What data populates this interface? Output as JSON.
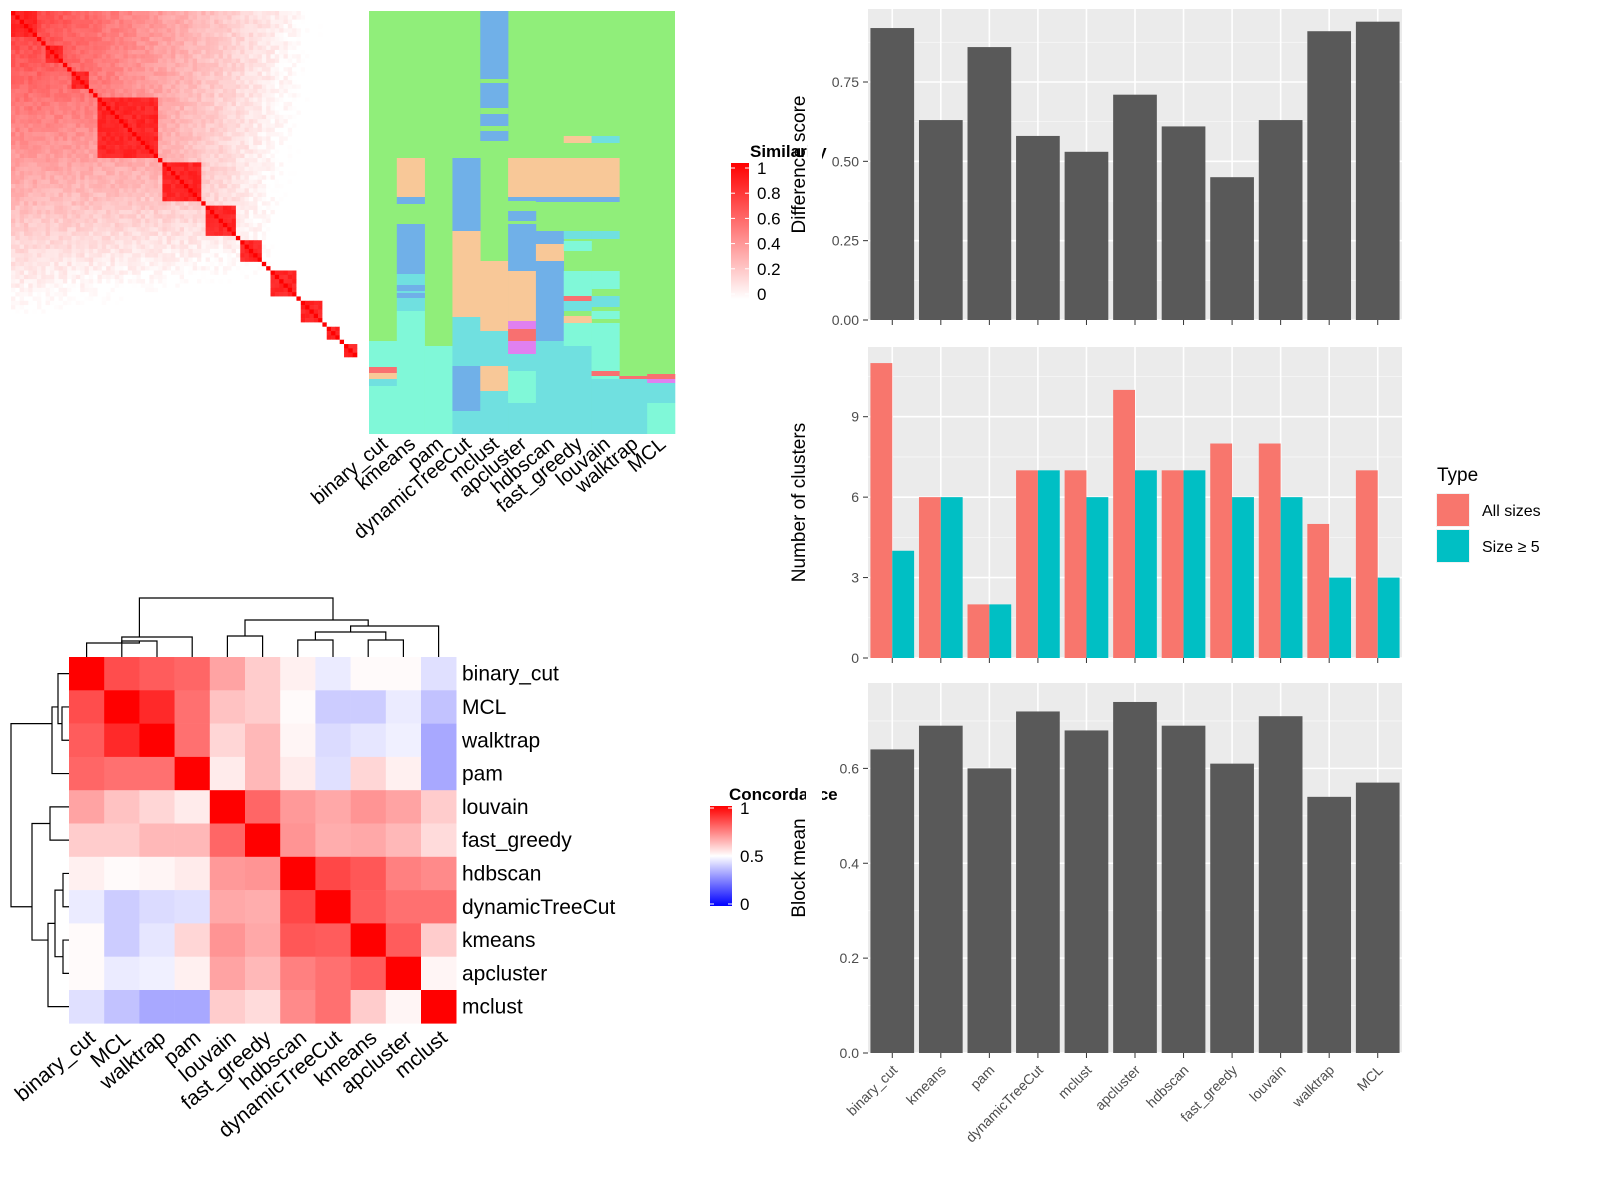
{
  "chart_data": [
    {
      "type": "heatmap",
      "id": "similarity-heatmap",
      "legend_title": "Similarity",
      "legend_ticks": [
        "1",
        "0.8",
        "0.6",
        "0.4",
        "0.2",
        "0"
      ],
      "colors": {
        "low": "#ffffff",
        "high": "#ff0000"
      }
    },
    {
      "type": "heatmap",
      "id": "cluster-membership",
      "methods": [
        "binary_cut",
        "kmeans",
        "pam",
        "dynamicTreeCut",
        "mclust",
        "apcluster",
        "hdbscan",
        "fast_greedy",
        "louvain",
        "walktrap",
        "MCL"
      ],
      "colors": {
        "green": "#90ee7a",
        "blue": "#70b0e8",
        "peach": "#f8c898",
        "cyan": "#70e0e0",
        "aqua": "#80f8d8",
        "violet": "#e080f0",
        "red": "#f87070"
      }
    },
    {
      "type": "heatmap",
      "id": "concordance-heatmap",
      "legend_title": "Concordance",
      "legend_ticks": [
        "1",
        "0.5",
        "0"
      ],
      "rows": [
        "binary_cut",
        "MCL",
        "walktrap",
        "pam",
        "louvain",
        "fast_greedy",
        "hdbscan",
        "dynamicTreeCut",
        "kmeans",
        "apcluster",
        "mclust"
      ],
      "cols": [
        "binary_cut",
        "MCL",
        "walktrap",
        "pam",
        "louvain",
        "fast_greedy",
        "hdbscan",
        "dynamicTreeCut",
        "kmeans",
        "apcluster",
        "mclust"
      ],
      "values": [
        [
          1.0,
          0.85,
          0.82,
          0.8,
          0.68,
          0.6,
          0.53,
          0.46,
          0.51,
          0.51,
          0.44
        ],
        [
          0.85,
          1.0,
          0.92,
          0.78,
          0.62,
          0.6,
          0.51,
          0.4,
          0.4,
          0.46,
          0.38
        ],
        [
          0.82,
          0.92,
          1.0,
          0.78,
          0.58,
          0.64,
          0.52,
          0.43,
          0.45,
          0.47,
          0.33
        ],
        [
          0.8,
          0.78,
          0.78,
          1.0,
          0.54,
          0.64,
          0.54,
          0.44,
          0.58,
          0.53,
          0.33
        ],
        [
          0.68,
          0.62,
          0.58,
          0.54,
          1.0,
          0.8,
          0.7,
          0.67,
          0.71,
          0.68,
          0.6
        ],
        [
          0.6,
          0.6,
          0.64,
          0.64,
          0.8,
          1.0,
          0.71,
          0.66,
          0.67,
          0.64,
          0.57
        ],
        [
          0.53,
          0.51,
          0.52,
          0.54,
          0.7,
          0.71,
          1.0,
          0.86,
          0.83,
          0.75,
          0.73
        ],
        [
          0.46,
          0.4,
          0.43,
          0.44,
          0.67,
          0.66,
          0.86,
          1.0,
          0.82,
          0.78,
          0.78
        ],
        [
          0.51,
          0.4,
          0.45,
          0.58,
          0.71,
          0.67,
          0.83,
          0.82,
          1.0,
          0.82,
          0.6
        ],
        [
          0.51,
          0.46,
          0.47,
          0.53,
          0.68,
          0.64,
          0.75,
          0.78,
          0.82,
          1.0,
          0.52
        ],
        [
          0.44,
          0.38,
          0.33,
          0.33,
          0.6,
          0.57,
          0.73,
          0.78,
          0.6,
          0.52,
          1.0
        ]
      ]
    },
    {
      "type": "bar",
      "id": "difference-score",
      "categories": [
        "binary_cut",
        "kmeans",
        "pam",
        "dynamicTreeCut",
        "mclust",
        "apcluster",
        "hdbscan",
        "fast_greedy",
        "louvain",
        "walktrap",
        "MCL"
      ],
      "values": [
        0.92,
        0.63,
        0.86,
        0.58,
        0.53,
        0.71,
        0.61,
        0.45,
        0.63,
        0.91,
        0.94
      ],
      "ylabel": "Difference score",
      "ylim": [
        0,
        0.98
      ],
      "yticks": [
        0,
        0.25,
        0.5,
        0.75
      ],
      "ytick_labels": [
        "0.00",
        "0.25",
        "0.50",
        "0.75"
      ],
      "grid": true,
      "color": "#595959"
    },
    {
      "type": "bar",
      "id": "number-of-clusters",
      "categories": [
        "binary_cut",
        "kmeans",
        "pam",
        "dynamicTreeCut",
        "mclust",
        "apcluster",
        "hdbscan",
        "fast_greedy",
        "louvain",
        "walktrap",
        "MCL"
      ],
      "series": [
        {
          "name": "All sizes",
          "values": [
            11,
            6,
            2,
            7,
            7,
            10,
            7,
            8,
            8,
            5,
            7
          ],
          "color": "#f8766d"
        },
        {
          "name": "Size ≥ 5",
          "values": [
            4,
            6,
            2,
            7,
            6,
            7,
            7,
            6,
            6,
            3,
            3
          ],
          "color": "#00bfc4"
        }
      ],
      "ylabel": "Number of clusters",
      "ylim": [
        0,
        11.6
      ],
      "yticks": [
        0,
        3,
        6,
        9
      ],
      "ytick_labels": [
        "0",
        "3",
        "6",
        "9"
      ],
      "legend_title": "Type",
      "legend_position": "right",
      "grid": true
    },
    {
      "type": "bar",
      "id": "block-mean",
      "categories": [
        "binary_cut",
        "kmeans",
        "pam",
        "dynamicTreeCut",
        "mclust",
        "apcluster",
        "hdbscan",
        "fast_greedy",
        "louvain",
        "walktrap",
        "MCL"
      ],
      "values": [
        0.64,
        0.69,
        0.6,
        0.72,
        0.68,
        0.74,
        0.69,
        0.61,
        0.71,
        0.54,
        0.57
      ],
      "ylabel": "Block mean",
      "ylim": [
        0,
        0.78
      ],
      "yticks": [
        0,
        0.2,
        0.4,
        0.6
      ],
      "ytick_labels": [
        "0.0",
        "0.2",
        "0.4",
        "0.6"
      ],
      "grid": true,
      "color": "#595959"
    }
  ]
}
